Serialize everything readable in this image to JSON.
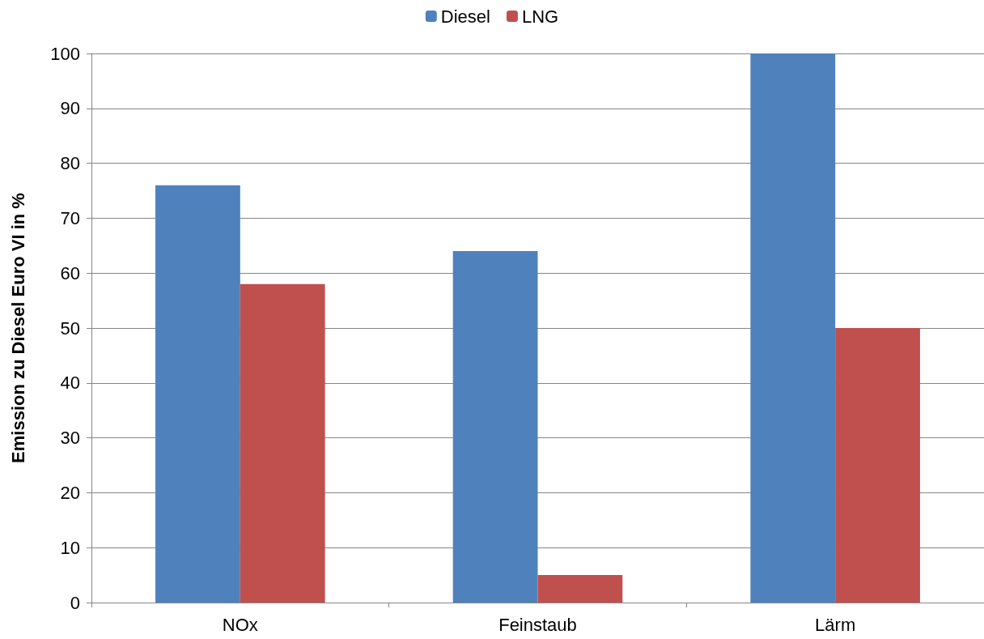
{
  "chart_data": {
    "type": "bar",
    "ylabel": "Emission zu Diesel Euro VI in %",
    "categories": [
      "NOx",
      "Feinstaub",
      "Lärm"
    ],
    "series": [
      {
        "name": "Diesel",
        "color": "#4f81bd",
        "values": [
          76,
          64,
          100
        ]
      },
      {
        "name": "LNG",
        "color": "#c0504d",
        "values": [
          58,
          5,
          50
        ]
      }
    ],
    "ylim": [
      0,
      100
    ],
    "yticks": [
      0,
      10,
      20,
      30,
      40,
      50,
      60,
      70,
      80,
      90,
      100
    ],
    "grid": "y",
    "legend": "top"
  }
}
